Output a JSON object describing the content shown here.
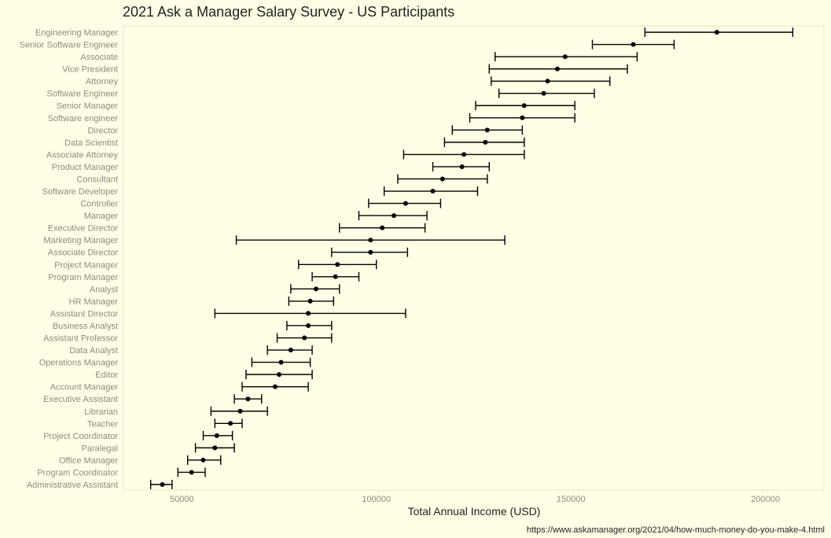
{
  "chart_data": {
    "type": "scatter",
    "subtype": "point-with-horizontal-error-bars",
    "title": "2021 Ask a Manager Salary Survey - US Participants",
    "xlabel": "Total Annual Income (USD)",
    "ylabel": "",
    "caption": "https://www.askamanager.org/2021/04/how-much-money-do-you-make-4.html",
    "xlim": [
      35000,
      215000
    ],
    "xticks": [
      50000,
      100000,
      150000,
      200000
    ],
    "xtick_labels": [
      "50000",
      "100000",
      "150000",
      "200000"
    ],
    "grid": false,
    "legend": "none",
    "colors": {
      "background": "#FFFFE5",
      "panel": "#FFFFE5",
      "point": "#000000",
      "errorbar": "#000000",
      "label": "#8C8C80",
      "title": "#222222",
      "panel_border": "#E5E5C9"
    },
    "categories": [
      "Engineering Manager",
      "Senior Software Engineer",
      "Associate",
      "Vice President",
      "Attorney",
      "Software Engineer",
      "Senior Manager",
      "Software engineer",
      "Director",
      "Data Scientist",
      "Associate Attorney",
      "Product Manager",
      "Consultant",
      "Software Developer",
      "Controller",
      "Manager",
      "Executive Director",
      "Marketing Manager",
      "Associate Director",
      "Project Manager",
      "Program Manager",
      "Analyst",
      "HR Manager",
      "Assistant Director",
      "Business Analyst",
      "Assistant Professor",
      "Data Analyst",
      "Operations Manager",
      "Editor",
      "Account Manager",
      "Executive Assistant",
      "Librarian",
      "Teacher",
      "Project Coordinator",
      "Paralegal",
      "Office Manager",
      "Program Coordinator",
      "Administrative Assistant"
    ],
    "values": [
      187500,
      166000,
      148500,
      146500,
      144000,
      143000,
      138000,
      137500,
      128500,
      128000,
      122500,
      122000,
      117000,
      114500,
      107500,
      104500,
      101500,
      98500,
      98500,
      90000,
      89500,
      84500,
      83000,
      82500,
      82500,
      81500,
      78000,
      75500,
      75000,
      74000,
      67000,
      65000,
      62500,
      59000,
      58500,
      55500,
      52500,
      45000
    ],
    "lower": [
      169000,
      155500,
      130500,
      129000,
      129500,
      131500,
      125500,
      124000,
      119500,
      117500,
      107000,
      114500,
      105500,
      102000,
      98000,
      95500,
      90500,
      64000,
      88500,
      80000,
      83500,
      78000,
      77500,
      58500,
      77000,
      74500,
      72000,
      68000,
      66500,
      65500,
      63500,
      57500,
      58500,
      55500,
      53500,
      51500,
      49000,
      42000
    ],
    "upper": [
      207000,
      176500,
      167000,
      164500,
      160000,
      156000,
      151000,
      151000,
      137500,
      138000,
      138000,
      129000,
      128500,
      126000,
      116500,
      113000,
      112500,
      133000,
      108000,
      100000,
      95500,
      90500,
      89000,
      107500,
      88500,
      88500,
      83500,
      83000,
      83500,
      82500,
      70500,
      72000,
      65500,
      63000,
      63500,
      60000,
      56000,
      47500
    ]
  }
}
